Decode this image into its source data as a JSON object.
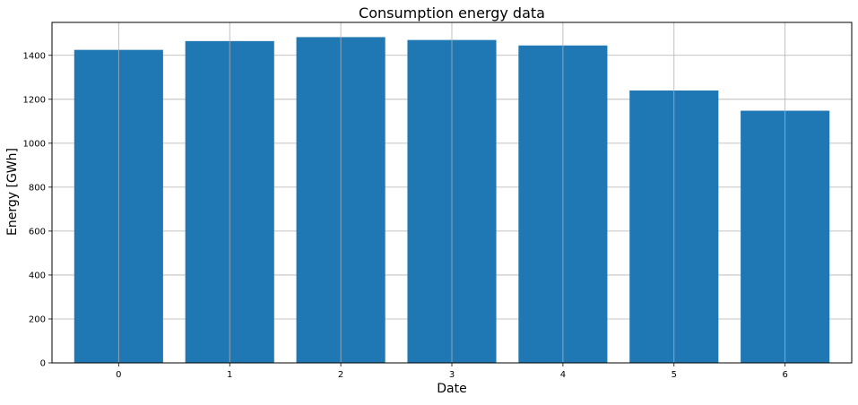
{
  "chart_data": {
    "type": "bar",
    "title": "Consumption energy data",
    "xlabel": "Date",
    "ylabel": "Energy [GWh]",
    "categories": [
      "0",
      "1",
      "2",
      "3",
      "4",
      "5",
      "6"
    ],
    "values": [
      1425,
      1465,
      1483,
      1470,
      1445,
      1240,
      1148
    ],
    "ylim": [
      0,
      1550
    ],
    "yticks": [
      0,
      200,
      400,
      600,
      800,
      1000,
      1200,
      1400
    ],
    "grid": true,
    "bar_color": "#1f77b4",
    "grid_color": "#b0b0b0"
  }
}
